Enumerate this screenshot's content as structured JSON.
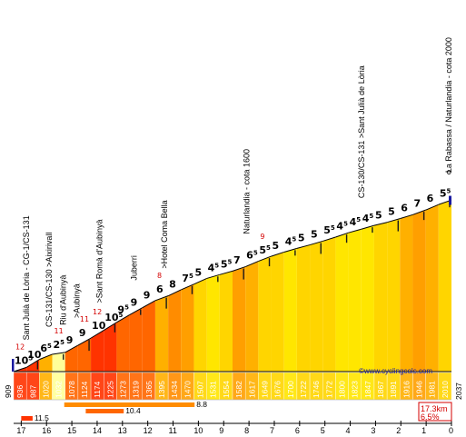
{
  "chart_data": {
    "type": "area",
    "title": "",
    "base_altitude": "909",
    "end_km_label": "0",
    "end_altitude": "2037",
    "website": "©www.cyclingcols.com",
    "summary": {
      "distance": "17.3km",
      "average": "6.5%"
    },
    "ylim": [
      909,
      2100
    ],
    "x_km": [
      17,
      16,
      15,
      14,
      13,
      12,
      11,
      10,
      9,
      8,
      7,
      6,
      5,
      4,
      3,
      2,
      1,
      0
    ],
    "segments": [
      {
        "grade": "10",
        "frac": "5",
        "alt": 936,
        "color": "#ff3300"
      },
      {
        "grade": "10",
        "frac": "",
        "alt": 987,
        "color": "#ff3300"
      },
      {
        "grade": "6",
        "frac": "5",
        "alt": 1020,
        "color": "#ffb000"
      },
      {
        "grade": "2",
        "frac": "5",
        "alt": 1032,
        "color": "#ffff99"
      },
      {
        "grade": "9",
        "frac": "",
        "alt": 1078,
        "color": "#ff6600"
      },
      {
        "grade": "9",
        "frac": "",
        "alt": 1124,
        "color": "#ff6600"
      },
      {
        "grade": "10",
        "frac": "",
        "alt": 1174,
        "color": "#ff3300"
      },
      {
        "grade": "10",
        "frac": "5",
        "alt": 1225,
        "color": "#ff3300"
      },
      {
        "grade": "9",
        "frac": "5",
        "alt": 1273,
        "color": "#ff6600"
      },
      {
        "grade": "9",
        "frac": "",
        "alt": 1319,
        "color": "#ff6600"
      },
      {
        "grade": "9",
        "frac": "",
        "alt": 1365,
        "color": "#ff6600"
      },
      {
        "grade": "6",
        "frac": "",
        "alt": 1395,
        "color": "#ffb000"
      },
      {
        "grade": "8",
        "frac": "",
        "alt": 1434,
        "color": "#ff8c00"
      },
      {
        "grade": "7",
        "frac": "5",
        "alt": 1470,
        "color": "#ff9f00"
      },
      {
        "grade": "5",
        "frac": "",
        "alt": 1507,
        "color": "#ffd500"
      },
      {
        "grade": "4",
        "frac": "5",
        "alt": 1531,
        "color": "#ffe600"
      },
      {
        "grade": "5",
        "frac": "5",
        "alt": 1554,
        "color": "#ffd500"
      },
      {
        "grade": "7",
        "frac": "",
        "alt": 1582,
        "color": "#ff9f00"
      },
      {
        "grade": "6",
        "frac": "5",
        "alt": 1617,
        "color": "#ffb000"
      },
      {
        "grade": "5",
        "frac": "5",
        "alt": 1649,
        "color": "#ffd500"
      },
      {
        "grade": "5",
        "frac": "",
        "alt": 1676,
        "color": "#ffd500"
      },
      {
        "grade": "4",
        "frac": "5",
        "alt": 1700,
        "color": "#ffe600"
      },
      {
        "grade": "5",
        "frac": "",
        "alt": 1722,
        "color": "#ffd500"
      },
      {
        "grade": "5",
        "frac": "",
        "alt": 1746,
        "color": "#ffd500"
      },
      {
        "grade": "5",
        "frac": "5",
        "alt": 1772,
        "color": "#ffd500"
      },
      {
        "grade": "4",
        "frac": "5",
        "alt": 1800,
        "color": "#ffe600"
      },
      {
        "grade": "4",
        "frac": "5",
        "alt": 1823,
        "color": "#ffe600"
      },
      {
        "grade": "4",
        "frac": "5",
        "alt": 1847,
        "color": "#ffe600"
      },
      {
        "grade": "5",
        "frac": "",
        "alt": 1867,
        "color": "#ffd500"
      },
      {
        "grade": "5",
        "frac": "",
        "alt": 1891,
        "color": "#ffd500"
      },
      {
        "grade": "6",
        "frac": "",
        "alt": 1916,
        "color": "#ffb000"
      },
      {
        "grade": "7",
        "frac": "",
        "alt": 1946,
        "color": "#ff9f00"
      },
      {
        "grade": "6",
        "frac": "",
        "alt": 1981,
        "color": "#ffb000"
      },
      {
        "grade": "5",
        "frac": "5",
        "alt": 2010,
        "color": "#ffd500"
      }
    ],
    "max_gradients": [
      {
        "label": "12",
        "seg": 0
      },
      {
        "label": "11",
        "seg": 3
      },
      {
        "label": "11",
        "seg": 5
      },
      {
        "label": "12",
        "seg": 6
      },
      {
        "label": "8",
        "seg": 11
      },
      {
        "label": "9",
        "seg": 19
      }
    ],
    "points": [
      {
        "label": "Sant Julià de Lòria - CG-1/CS-131",
        "km": 16.8
      },
      {
        "label": "CS-131/CS-130 >Aixirivall",
        "km": 15.9
      },
      {
        "label": "Riu d'Aubinyà",
        "km": 15.35
      },
      {
        "label": ">Aubinyà",
        "km": 14.8
      },
      {
        "label": ">Sant Romà d'Aubinyà",
        "km": 13.9
      },
      {
        "label": "Juberri",
        "km": 12.55
      },
      {
        "label": ">Hotel Coma Bella",
        "km": 11.35
      },
      {
        "label": "Naturlandia - cota 1600",
        "km": 8.1
      },
      {
        "label": "CS-130/CS-131 >Sant Julià de Lòria",
        "km": 3.55
      },
      {
        "label": "La Rabassa / Naturlandia - cota 2000",
        "km": 0.1
      }
    ],
    "steepest_segments": [
      {
        "value": "11.5",
        "from_km": 17.0,
        "to_km": 16.55,
        "row": 0
      },
      {
        "value": "10.4",
        "from_km": 14.45,
        "to_km": 12.95,
        "row": 1
      },
      {
        "value": "8.8",
        "from_km": 15.3,
        "to_km": 10.15,
        "row": 2
      }
    ]
  }
}
